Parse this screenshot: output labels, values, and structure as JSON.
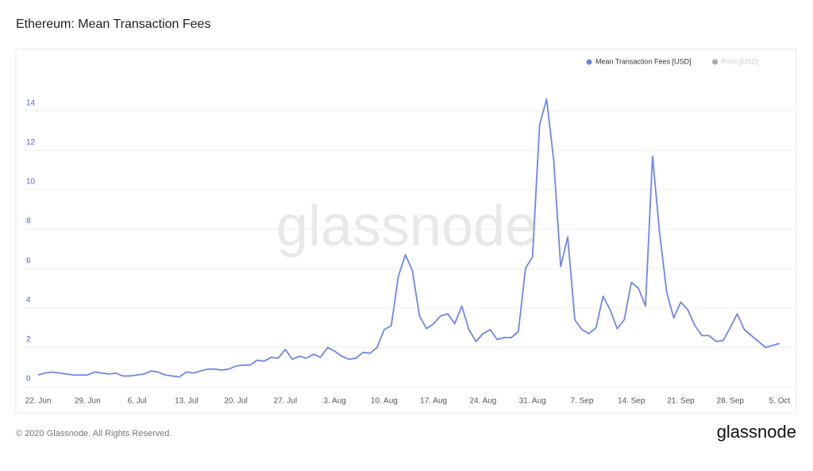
{
  "chart_data": {
    "type": "line",
    "title": "Ethereum: Mean Transaction Fees",
    "watermark": "glassnode",
    "footer": "© 2020 Glassnode. All Rights Reserved.",
    "brand": "glassnode",
    "categories": [
      "22. Jun",
      null,
      null,
      null,
      null,
      null,
      null,
      "29. Jun",
      null,
      null,
      null,
      null,
      null,
      null,
      "6. Jul",
      null,
      null,
      null,
      null,
      null,
      null,
      "13. Jul",
      null,
      null,
      null,
      null,
      null,
      null,
      "20. Jul",
      null,
      null,
      null,
      null,
      null,
      null,
      "27. Jul",
      null,
      null,
      null,
      null,
      null,
      null,
      "3. Aug",
      null,
      null,
      null,
      null,
      null,
      null,
      "10. Aug",
      null,
      null,
      null,
      null,
      null,
      null,
      "17. Aug",
      null,
      null,
      null,
      null,
      null,
      null,
      "24. Aug",
      null,
      null,
      null,
      null,
      null,
      null,
      "31. Aug",
      null,
      null,
      null,
      null,
      null,
      null,
      "7. Sep",
      null,
      null,
      null,
      null,
      null,
      null,
      "14. Sep",
      null,
      null,
      null,
      null,
      null,
      null,
      "21. Sep",
      null,
      null,
      null,
      null,
      null,
      null,
      "28. Sep",
      null,
      null,
      null,
      null,
      null,
      null,
      "5. Oct"
    ],
    "series": [
      {
        "name": "Mean Transaction Fees [USD]",
        "color": "#6f86e8",
        "values": [
          0.6,
          0.7,
          0.75,
          0.7,
          0.65,
          0.6,
          0.6,
          0.6,
          0.75,
          0.7,
          0.65,
          0.7,
          0.55,
          0.55,
          0.6,
          0.65,
          0.8,
          0.75,
          0.6,
          0.55,
          0.5,
          0.75,
          0.7,
          0.8,
          0.9,
          0.9,
          0.85,
          0.9,
          1.05,
          1.1,
          1.1,
          1.35,
          1.3,
          1.5,
          1.45,
          1.9,
          1.4,
          1.55,
          1.45,
          1.65,
          1.5,
          2.0,
          1.8,
          1.55,
          1.4,
          1.45,
          1.75,
          1.7,
          2.0,
          2.9,
          3.1,
          5.6,
          6.7,
          5.9,
          3.6,
          2.95,
          3.2,
          3.6,
          3.7,
          3.2,
          4.1,
          2.9,
          2.3,
          2.7,
          2.9,
          2.4,
          2.5,
          2.5,
          2.8,
          6.0,
          6.6,
          13.3,
          14.6,
          11.5,
          6.1,
          7.6,
          3.4,
          2.9,
          2.7,
          3.0,
          4.6,
          3.9,
          2.95,
          3.4,
          5.3,
          5.0,
          4.1,
          11.7,
          7.8,
          4.8,
          3.5,
          4.3,
          3.9,
          3.1,
          2.6,
          2.6,
          2.3,
          2.35,
          3.0,
          3.7,
          2.9,
          2.6,
          2.3,
          2.0,
          2.1,
          2.2
        ]
      }
    ],
    "legend": [
      {
        "name": "Mean Transaction Fees [USD]",
        "color": "#6f86e8"
      },
      {
        "name": "Price [USD]",
        "color": "#777777"
      }
    ],
    "ylim": [
      0,
      16
    ],
    "yticks": [
      0,
      2,
      4,
      6,
      8,
      10,
      12,
      14
    ],
    "grid": true
  }
}
